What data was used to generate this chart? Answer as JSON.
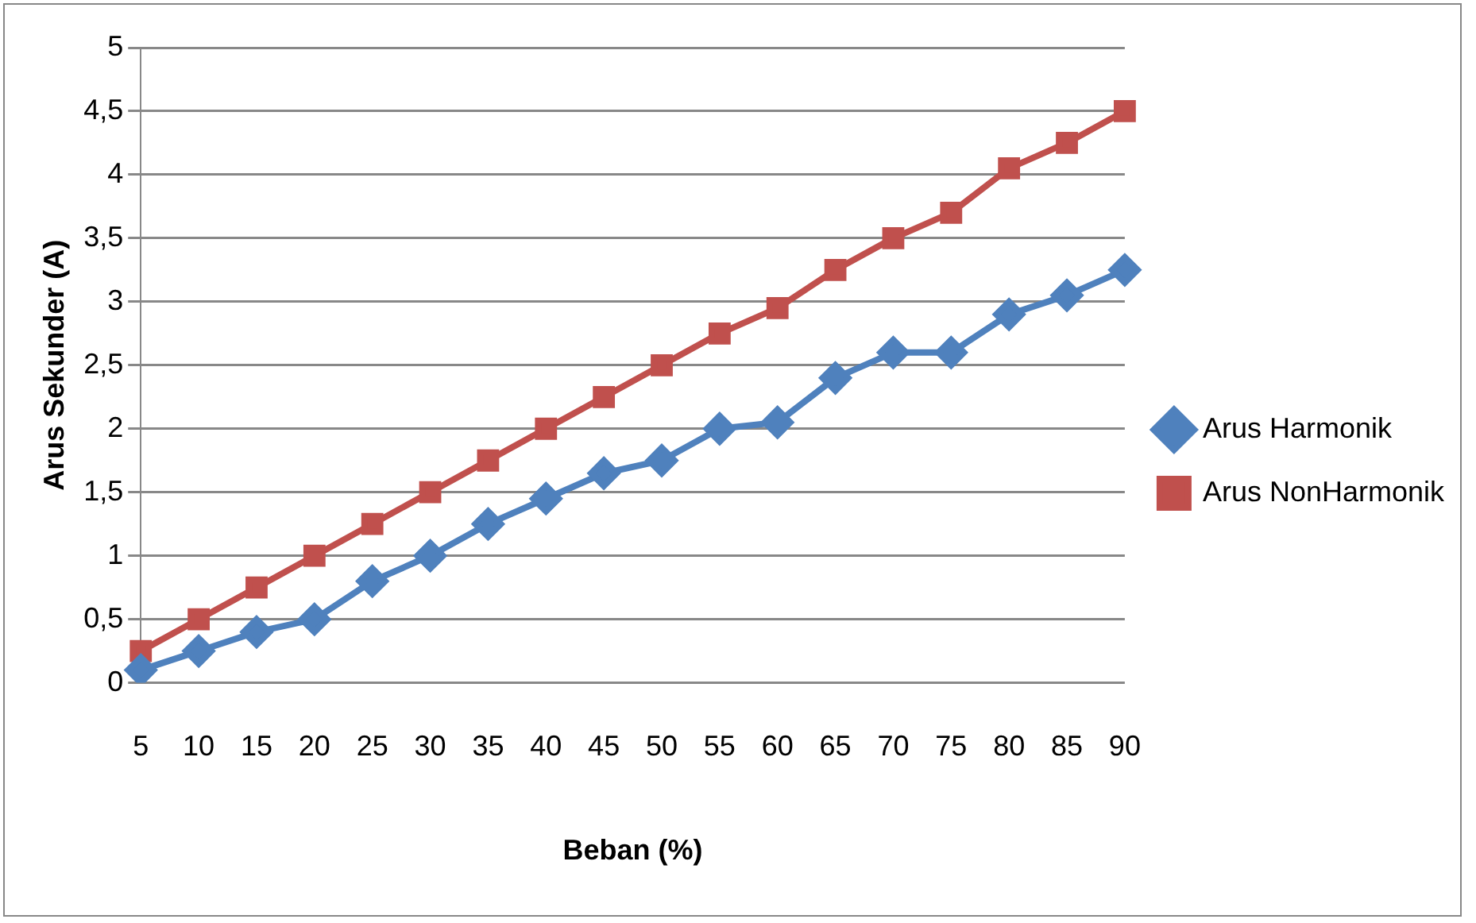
{
  "chart_data": {
    "type": "line",
    "xlabel": "Beban (%)",
    "ylabel": "Arus Sekunder (A)",
    "categories": [
      "5",
      "10",
      "15",
      "20",
      "25",
      "30",
      "35",
      "40",
      "45",
      "50",
      "55",
      "60",
      "65",
      "70",
      "75",
      "80",
      "85",
      "90"
    ],
    "series": [
      {
        "name": "Arus Harmonik",
        "color": "#4f81bd",
        "marker": "diamond",
        "values": [
          0.1,
          0.25,
          0.4,
          0.5,
          0.8,
          1.0,
          1.25,
          1.45,
          1.65,
          1.75,
          2.0,
          2.05,
          2.4,
          2.6,
          2.6,
          2.9,
          3.05,
          3.25
        ]
      },
      {
        "name": "Arus NonHarmonik",
        "color": "#c0504d",
        "marker": "square",
        "values": [
          0.25,
          0.5,
          0.75,
          1.0,
          1.25,
          1.5,
          1.75,
          2.0,
          2.25,
          2.5,
          2.75,
          2.95,
          3.25,
          3.5,
          3.7,
          4.05,
          4.25,
          4.5
        ]
      }
    ],
    "ylim": [
      0,
      5
    ],
    "yticks": [
      0,
      {
        "value": 0.5,
        "label": "0,5"
      },
      1,
      {
        "value": 1.5,
        "label": "1,5"
      },
      2,
      {
        "value": 2.5,
        "label": "2,5"
      },
      3,
      {
        "value": 3.5,
        "label": "3,5"
      },
      4,
      {
        "value": 4.5,
        "label": "4,5"
      },
      5
    ],
    "grid": "y",
    "legend": "right",
    "line_style": "solid"
  }
}
